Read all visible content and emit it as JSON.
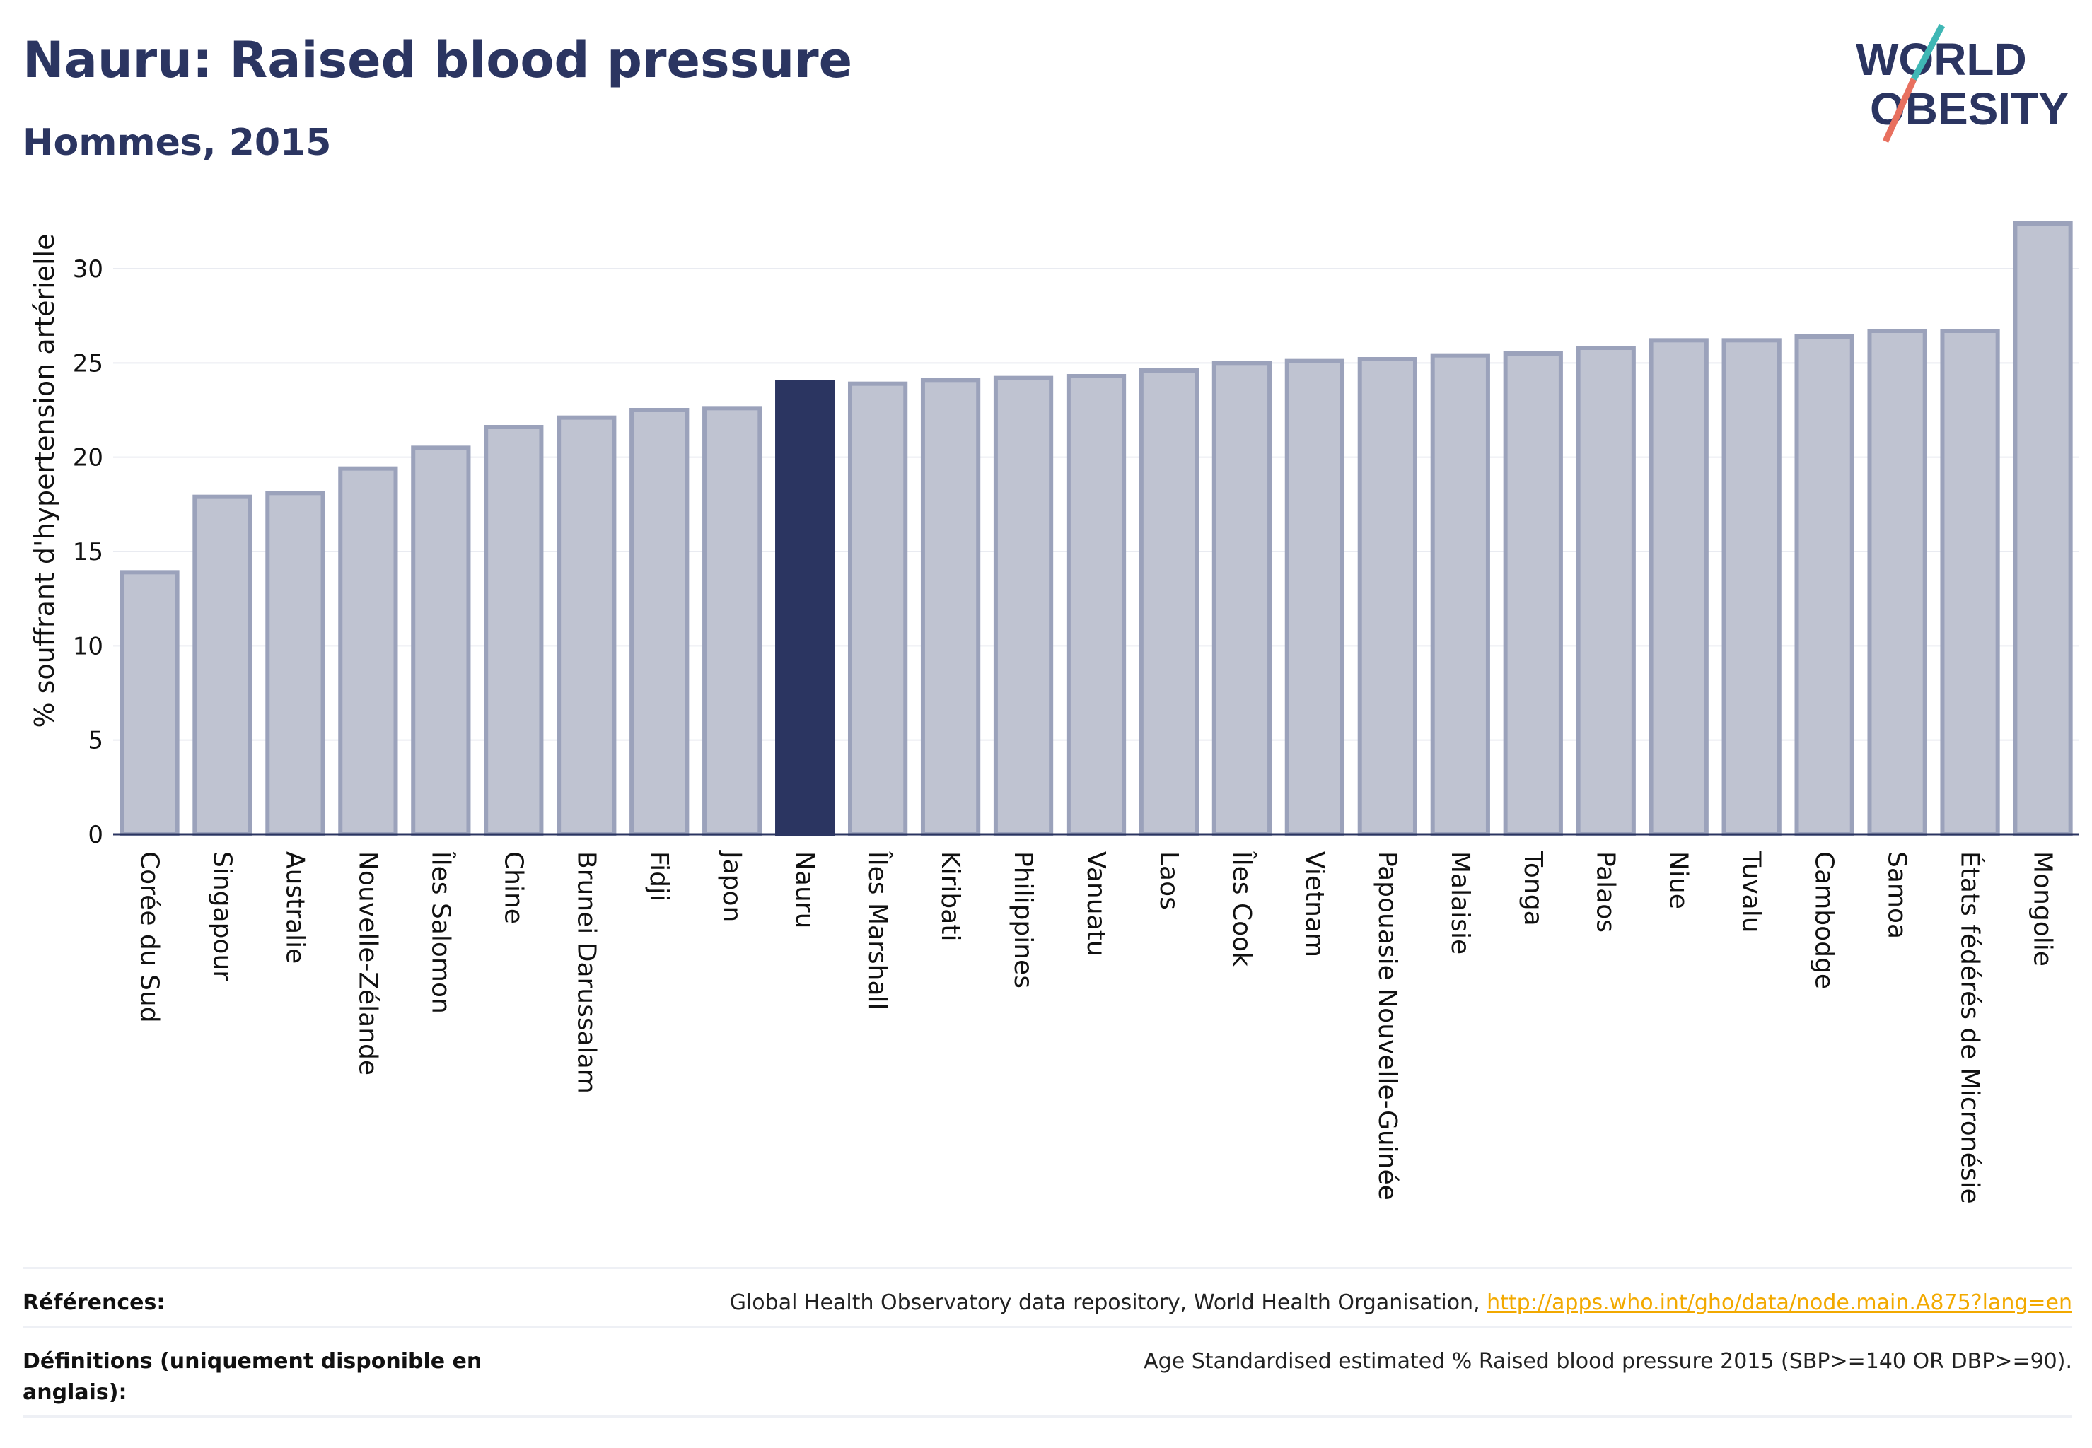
{
  "header": {
    "title": "Nauru: Raised blood pressure",
    "subtitle": "Hommes, 2015"
  },
  "logo": {
    "line1": "WORLD",
    "line2": "OBESITY"
  },
  "chart_data": {
    "type": "bar",
    "ylabel": "% souffrant d'hypertension artérielle",
    "xlabel": "",
    "ylim": [
      0,
      33
    ],
    "yticks": [
      0,
      5,
      10,
      15,
      20,
      25,
      30
    ],
    "grid": true,
    "highlight": "Nauru",
    "colors": {
      "bar": "#bfc3d1",
      "bar_border": "#9ba2bb",
      "highlight": "#2b3561"
    },
    "categories": [
      "Corée du Sud",
      "Singapour",
      "Australie",
      "Nouvelle-Zélande",
      "Îles Salomon",
      "Chine",
      "Brunei Darussalam",
      "Fidji",
      "Japon",
      "Nauru",
      "Îles Marshall",
      "Kiribati",
      "Philippines",
      "Vanuatu",
      "Laos",
      "Îles Cook",
      "Vietnam",
      "Papouasie Nouvelle-Guinée",
      "Malaisie",
      "Tonga",
      "Palaos",
      "Niue",
      "Tuvalu",
      "Cambodge",
      "Samoa",
      "États fédérés de Micronésie",
      "Mongolie"
    ],
    "values": [
      13.9,
      17.9,
      18.1,
      19.4,
      20.5,
      21.6,
      22.1,
      22.5,
      22.6,
      24.0,
      23.9,
      24.1,
      24.2,
      24.3,
      24.6,
      25.0,
      25.1,
      25.2,
      25.4,
      25.5,
      25.8,
      26.2,
      26.2,
      26.4,
      26.7,
      26.7,
      32.4
    ]
  },
  "footer": {
    "references_label": "Références:",
    "references_text": "Global Health Observatory data repository, World Health Organisation, ",
    "references_link": "http://apps.who.int/gho/data/node.main.A875?lang=en",
    "definitions_label": "Définitions (uniquement disponible en anglais):",
    "definitions_text": "Age Standardised estimated % Raised blood pressure 2015 (SBP>=140 OR DBP>=90)."
  }
}
